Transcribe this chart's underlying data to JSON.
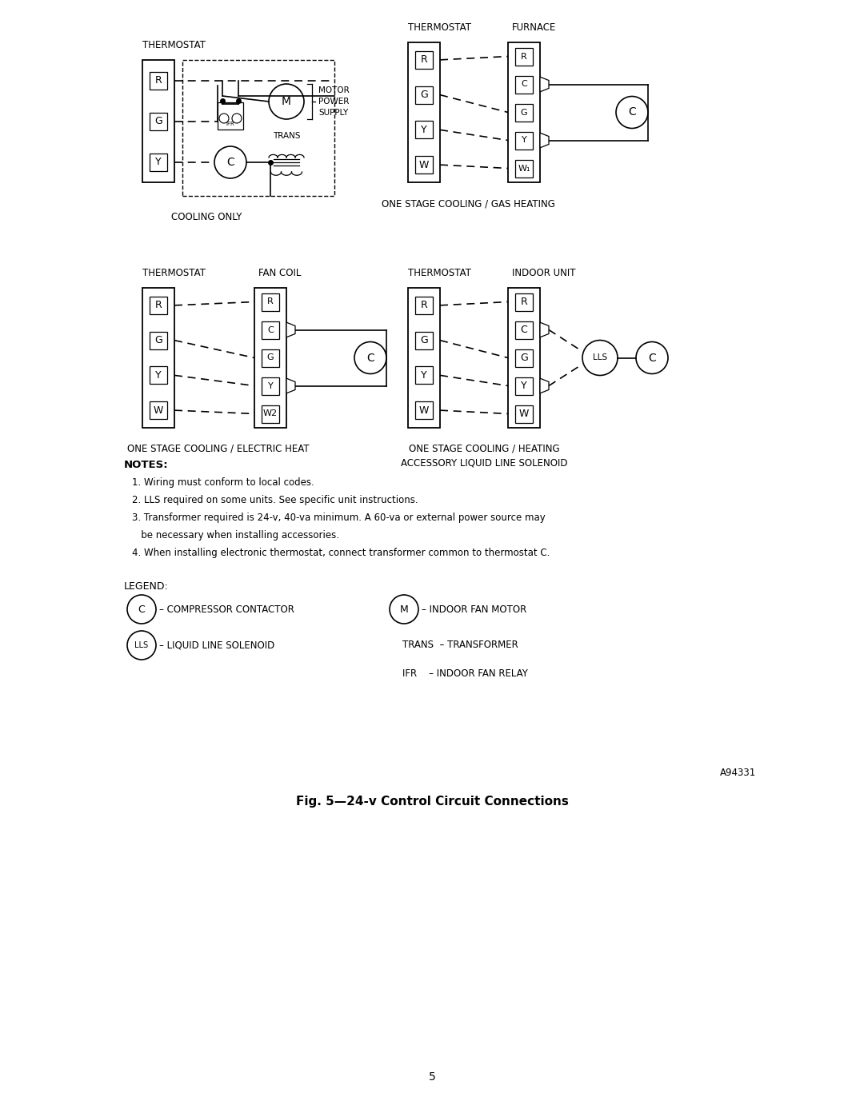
{
  "title": "Fig. 5—24-v Control Circuit Connections",
  "page_number": "5",
  "figure_id": "A94331",
  "bg": "#ffffff",
  "lc": "#000000",
  "notes": [
    "1. Wiring must conform to local codes.",
    "2. LLS required on some units. See specific unit instructions.",
    "3. Transformer required is 24-v, 40-va minimum. A 60-va or external power source may",
    "   be necessary when installing accessories.",
    "4. When installing electronic thermostat, connect transformer common to thermostat C."
  ],
  "diag1_label": "COOLING ONLY",
  "diag2_label": "ONE STAGE COOLING / GAS HEATING",
  "diag3_label": "ONE STAGE COOLING / ELECTRIC HEAT",
  "diag4_label_1": "ONE STAGE COOLING / HEATING",
  "diag4_label_2": "ACCESSORY LIQUID LINE SOLENOID",
  "legend_C_text": "– COMPRESSOR CONTACTOR",
  "legend_M_text": "– INDOOR FAN MOTOR",
  "legend_LLS_text": "– LIQUID LINE SOLENOID",
  "legend_TRANS_text": "TRANS  – TRANSFORMER",
  "legend_IFR_text": "IFR    – INDOOR FAN RELAY",
  "w1_label": "W₁",
  "note_header": "NOTES:",
  "legend_header": "LEGEND:"
}
